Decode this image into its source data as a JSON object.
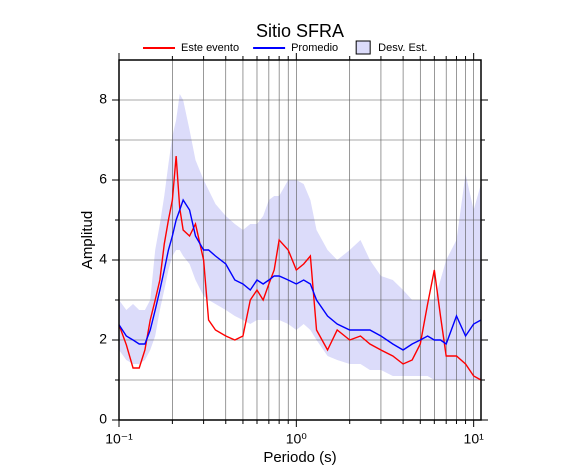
{
  "chart_data": {
    "type": "line",
    "title": "Sitio SFRA",
    "x_label": "Periodo (s)",
    "y_label": "Amplitud",
    "log_x": true,
    "grid": true,
    "xlim": [
      0.1,
      11
    ],
    "ylim": [
      0,
      9
    ],
    "xticks": [
      {
        "value": 0.1,
        "label": "10⁻¹"
      },
      {
        "value": 1,
        "label": "10⁰"
      },
      {
        "value": 10,
        "label": "10¹"
      }
    ],
    "xminor": [
      0.2,
      0.3,
      0.4,
      0.5,
      0.6,
      0.7,
      0.8,
      0.9,
      2,
      3,
      4,
      5,
      6,
      7,
      8,
      9
    ],
    "yticks": [
      0,
      2,
      4,
      6,
      8
    ],
    "yminor": [
      1,
      3,
      5,
      7
    ],
    "x": [
      0.1,
      0.11,
      0.12,
      0.13,
      0.14,
      0.15,
      0.16,
      0.17,
      0.18,
      0.19,
      0.2,
      0.21,
      0.22,
      0.23,
      0.25,
      0.27,
      0.3,
      0.32,
      0.35,
      0.4,
      0.45,
      0.5,
      0.55,
      0.6,
      0.65,
      0.7,
      0.75,
      0.8,
      0.9,
      1,
      1.1,
      1.2,
      1.3,
      1.5,
      1.7,
      2,
      2.3,
      2.6,
      3,
      3.5,
      4,
      4.5,
      5,
      5.5,
      6,
      6.5,
      7,
      8,
      9,
      10,
      11
    ],
    "band": {
      "name": "Desv. Est.",
      "color": "#dcdcfa",
      "lower": [
        1.75,
        1.5,
        1.4,
        1.4,
        1.5,
        1.75,
        2.1,
        2.75,
        3.25,
        3.75,
        4.1,
        4.25,
        4.25,
        4.1,
        3.9,
        3.5,
        3.1,
        3.0,
        2.9,
        2.75,
        2.6,
        2.5,
        2.4,
        2.5,
        2.5,
        2.5,
        2.5,
        2.5,
        2.4,
        2.25,
        2.4,
        2.25,
        2.0,
        1.6,
        1.5,
        1.4,
        1.4,
        1.25,
        1.25,
        1.1,
        1.1,
        1.1,
        1.1,
        1.1,
        1.0,
        1.0,
        1.0,
        1.0,
        1.0,
        1.0,
        1.0
      ],
      "upper": [
        3.0,
        2.75,
        2.9,
        2.75,
        2.75,
        3.0,
        4.25,
        4.9,
        5.6,
        6.4,
        7.1,
        7.5,
        8.15,
        8.0,
        7.25,
        6.5,
        6.0,
        5.75,
        5.4,
        5.1,
        4.9,
        4.75,
        4.9,
        4.9,
        5.1,
        5.5,
        5.6,
        5.6,
        6.0,
        6.0,
        5.9,
        5.5,
        4.75,
        4.25,
        4.0,
        4.25,
        4.5,
        4.0,
        3.6,
        3.5,
        3.25,
        3.0,
        3.0,
        3.0,
        3.0,
        3.5,
        4.0,
        4.5,
        6.15,
        5.25,
        5.9
      ]
    },
    "series": [
      {
        "name": "Este evento",
        "color": "#ff0000",
        "values": [
          2.38,
          1.88,
          1.3,
          1.3,
          1.75,
          2.5,
          3.0,
          3.5,
          4.4,
          5.0,
          5.5,
          6.6,
          5.3,
          4.75,
          4.6,
          4.9,
          4.0,
          2.5,
          2.25,
          2.1,
          2.0,
          2.1,
          3.0,
          3.25,
          3.0,
          3.4,
          3.75,
          4.5,
          4.25,
          3.75,
          3.9,
          4.1,
          2.25,
          1.75,
          2.25,
          2.0,
          2.1,
          1.9,
          1.75,
          1.6,
          1.4,
          1.5,
          1.9,
          2.9,
          3.75,
          2.6,
          1.6,
          1.6,
          1.4,
          1.1,
          1.0
        ]
      },
      {
        "name": "Promedio",
        "color": "#0000ff",
        "values": [
          2.38,
          2.1,
          2.0,
          1.9,
          1.9,
          2.25,
          2.75,
          3.25,
          3.75,
          4.25,
          4.6,
          5.0,
          5.25,
          5.5,
          5.25,
          4.6,
          4.25,
          4.25,
          4.1,
          3.9,
          3.5,
          3.4,
          3.25,
          3.5,
          3.4,
          3.5,
          3.6,
          3.6,
          3.5,
          3.4,
          3.5,
          3.4,
          3.0,
          2.6,
          2.4,
          2.25,
          2.25,
          2.25,
          2.1,
          1.9,
          1.75,
          1.9,
          2.0,
          2.1,
          2.0,
          2.0,
          1.9,
          2.6,
          2.1,
          2.4,
          2.5
        ]
      }
    ]
  }
}
